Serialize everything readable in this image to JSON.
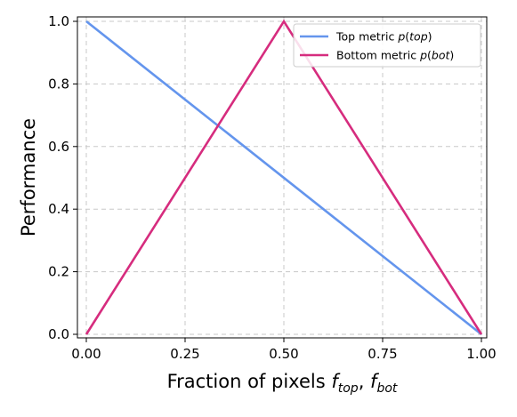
{
  "chart_data": {
    "type": "line",
    "xlabel": "Fraction of pixels",
    "xlabel_math": [
      "f",
      "top",
      ", ",
      "f",
      "bot"
    ],
    "ylabel": "Performance",
    "xlim": [
      0,
      1
    ],
    "ylim": [
      0,
      1
    ],
    "grid": true,
    "legend_position": "top-right",
    "x_ticks": [
      0.0,
      0.25,
      0.5,
      0.75,
      1.0
    ],
    "x_tick_labels": [
      "0.00",
      "0.25",
      "0.50",
      "0.75",
      "1.00"
    ],
    "y_ticks": [
      0.0,
      0.2,
      0.4,
      0.6,
      0.8,
      1.0
    ],
    "y_tick_labels": [
      "0.0",
      "0.2",
      "0.4",
      "0.6",
      "0.8",
      "1.0"
    ],
    "series": [
      {
        "name": "Top metric",
        "name_math": [
          "p(",
          "top",
          ")"
        ],
        "color": "#6495ED",
        "x": [
          0.0,
          1.0
        ],
        "y": [
          1.0,
          0.0
        ]
      },
      {
        "name": "Bottom metric",
        "name_math": [
          "p(",
          "bot",
          ")"
        ],
        "color": "#D62C7E",
        "x": [
          0.0,
          0.5,
          1.0
        ],
        "y": [
          0.0,
          1.0,
          0.0
        ]
      }
    ]
  }
}
